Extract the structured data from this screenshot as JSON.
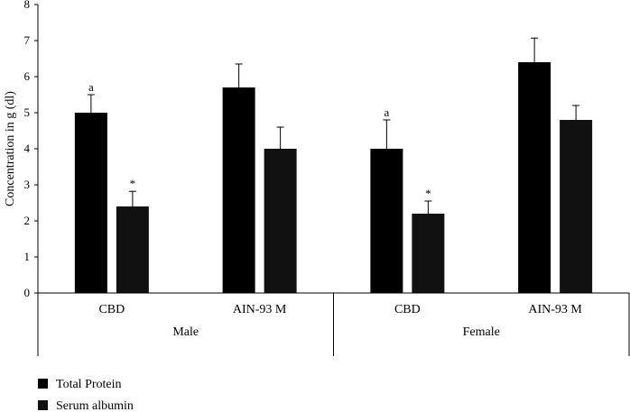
{
  "chart_data": {
    "type": "bar",
    "ylabel": "Concentration in g (dl)",
    "ylim": [
      0,
      8
    ],
    "yticks": [
      0,
      1,
      2,
      3,
      4,
      5,
      6,
      7,
      8
    ],
    "grid": false,
    "legend_position": "bottom-left",
    "groups": [
      {
        "label": "Male",
        "categories": [
          "CBD",
          "AIN-93 M"
        ]
      },
      {
        "label": "Female",
        "categories": [
          "CBD",
          "AIN-93 M"
        ]
      }
    ],
    "categories": [
      "CBD",
      "AIN-93 M",
      "CBD",
      "AIN-93 M"
    ],
    "series": [
      {
        "name": "Total Protein",
        "color": "#000000",
        "values": [
          5.0,
          5.7,
          4.0,
          6.4
        ],
        "errors": [
          0.5,
          0.65,
          0.8,
          0.67
        ],
        "annotations": [
          "a",
          "",
          "a",
          ""
        ]
      },
      {
        "name": "Serum albumin",
        "color": "#111111",
        "values": [
          2.4,
          4.0,
          2.2,
          4.8
        ],
        "errors": [
          0.42,
          0.6,
          0.35,
          0.4
        ],
        "annotations": [
          "*",
          "",
          "*",
          ""
        ]
      }
    ]
  }
}
